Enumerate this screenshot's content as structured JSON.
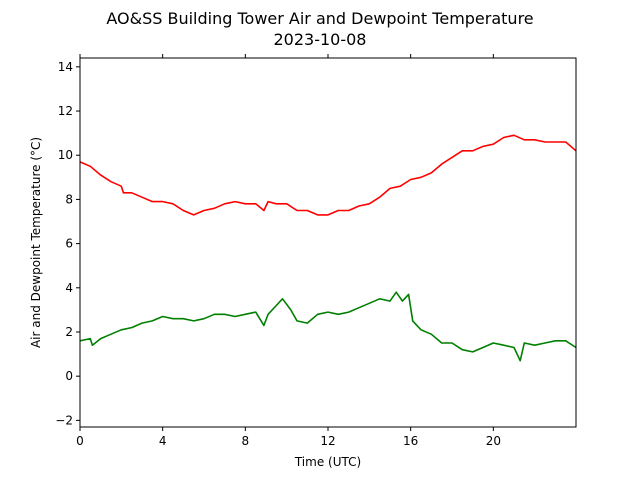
{
  "chart_data": {
    "type": "line",
    "title": "AO&SS Building Tower Air and Dewpoint Temperature",
    "subtitle": "2023-10-08",
    "xlabel": "Time (UTC)",
    "ylabel": "Air and Dewpoint Temperature (°C)",
    "xlim": [
      0,
      24
    ],
    "ylim": [
      -2.3,
      14.4
    ],
    "xticks": [
      0,
      4,
      8,
      12,
      16,
      20
    ],
    "yticks": [
      -2,
      0,
      2,
      4,
      6,
      8,
      10,
      12,
      14
    ],
    "grid": false,
    "legend": "none",
    "series": [
      {
        "color": "#ff0000",
        "x": [
          0,
          0.5,
          1,
          1.5,
          2,
          2.1,
          2.5,
          3,
          3.5,
          4,
          4.5,
          5,
          5.5,
          6,
          6.5,
          7,
          7.5,
          8,
          8.5,
          8.9,
          9.1,
          9.5,
          10,
          10.5,
          11,
          11.5,
          12,
          12.5,
          13,
          13.5,
          14,
          14.5,
          15,
          15.5,
          16,
          16.5,
          17,
          17.5,
          18,
          18.5,
          19,
          19.5,
          20,
          20.5,
          21,
          21.5,
          22,
          22.5,
          23,
          23.5,
          24
        ],
        "y": [
          9.7,
          9.5,
          9.1,
          8.8,
          8.6,
          8.3,
          8.3,
          8.1,
          7.9,
          7.9,
          7.8,
          7.5,
          7.3,
          7.5,
          7.6,
          7.8,
          7.9,
          7.8,
          7.8,
          7.5,
          7.9,
          7.8,
          7.8,
          7.5,
          7.5,
          7.3,
          7.3,
          7.5,
          7.5,
          7.7,
          7.8,
          8.1,
          8.5,
          8.6,
          8.9,
          9.0,
          9.2,
          9.6,
          9.9,
          10.2,
          10.2,
          10.4,
          10.5,
          10.8,
          10.9,
          10.7,
          10.7,
          10.6,
          10.6,
          10.6,
          10.2
        ]
      },
      {
        "color": "#008000",
        "x": [
          0,
          0.5,
          0.6,
          1,
          1.5,
          2,
          2.5,
          3,
          3.5,
          4,
          4.5,
          5,
          5.5,
          6,
          6.5,
          7,
          7.5,
          8,
          8.5,
          8.9,
          9.1,
          9.5,
          9.8,
          10.2,
          10.5,
          11,
          11.5,
          12,
          12.5,
          13,
          13.5,
          14,
          14.5,
          15,
          15.3,
          15.6,
          15.9,
          16.1,
          16.5,
          17,
          17.5,
          18,
          18.5,
          19,
          19.5,
          20,
          20.5,
          21,
          21.3,
          21.5,
          22,
          22.5,
          23,
          23.5,
          24
        ],
        "y": [
          1.6,
          1.7,
          1.4,
          1.7,
          1.9,
          2.1,
          2.2,
          2.4,
          2.5,
          2.7,
          2.6,
          2.6,
          2.5,
          2.6,
          2.8,
          2.8,
          2.7,
          2.8,
          2.9,
          2.3,
          2.8,
          3.2,
          3.5,
          3.0,
          2.5,
          2.4,
          2.8,
          2.9,
          2.8,
          2.9,
          3.1,
          3.3,
          3.5,
          3.4,
          3.8,
          3.4,
          3.7,
          2.5,
          2.1,
          1.9,
          1.5,
          1.5,
          1.2,
          1.1,
          1.3,
          1.5,
          1.4,
          1.3,
          0.7,
          1.5,
          1.4,
          1.5,
          1.6,
          1.6,
          1.3
        ]
      }
    ]
  }
}
